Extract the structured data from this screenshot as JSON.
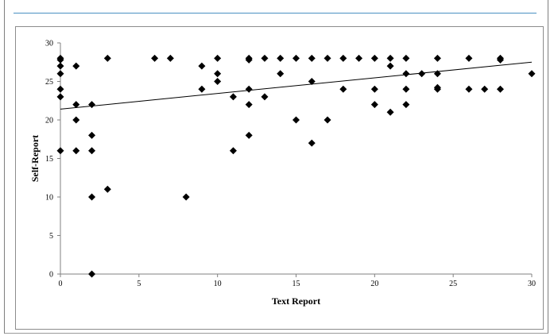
{
  "chart_data": {
    "type": "scatter",
    "title": "",
    "xlabel": "Text Report",
    "ylabel": "Self-Report",
    "xlim": [
      0,
      30
    ],
    "ylim": [
      0,
      30
    ],
    "x_ticks": [
      "0",
      "5",
      "10",
      "15",
      "20",
      "25",
      "30"
    ],
    "y_ticks": [
      "0",
      "5",
      "10",
      "15",
      "20",
      "25",
      "30"
    ],
    "grid": false,
    "legend": "none",
    "marker": "diamond",
    "marker_color": "#000000",
    "trendline": {
      "type": "linear",
      "x": [
        0,
        30
      ],
      "y": [
        21.4,
        27.5
      ]
    },
    "points": [
      {
        "x": 0,
        "y": 28
      },
      {
        "x": 0,
        "y": 27.8
      },
      {
        "x": 0,
        "y": 27
      },
      {
        "x": 0,
        "y": 26
      },
      {
        "x": 0,
        "y": 24
      },
      {
        "x": 0,
        "y": 23
      },
      {
        "x": 0,
        "y": 16
      },
      {
        "x": 1,
        "y": 27
      },
      {
        "x": 1,
        "y": 22
      },
      {
        "x": 1,
        "y": 20
      },
      {
        "x": 1,
        "y": 16
      },
      {
        "x": 2,
        "y": 22
      },
      {
        "x": 2,
        "y": 18
      },
      {
        "x": 2,
        "y": 16
      },
      {
        "x": 2,
        "y": 10
      },
      {
        "x": 2,
        "y": 0
      },
      {
        "x": 3,
        "y": 28
      },
      {
        "x": 3,
        "y": 11
      },
      {
        "x": 6,
        "y": 28
      },
      {
        "x": 7,
        "y": 28
      },
      {
        "x": 8,
        "y": 10
      },
      {
        "x": 9,
        "y": 27
      },
      {
        "x": 9,
        "y": 24
      },
      {
        "x": 10,
        "y": 28
      },
      {
        "x": 10,
        "y": 26
      },
      {
        "x": 10,
        "y": 25
      },
      {
        "x": 11,
        "y": 23
      },
      {
        "x": 11,
        "y": 16
      },
      {
        "x": 12,
        "y": 28
      },
      {
        "x": 12,
        "y": 27.8
      },
      {
        "x": 12,
        "y": 24
      },
      {
        "x": 12,
        "y": 22
      },
      {
        "x": 12,
        "y": 18
      },
      {
        "x": 13,
        "y": 28
      },
      {
        "x": 13,
        "y": 23
      },
      {
        "x": 14,
        "y": 28
      },
      {
        "x": 14,
        "y": 26
      },
      {
        "x": 15,
        "y": 28
      },
      {
        "x": 15,
        "y": 20
      },
      {
        "x": 16,
        "y": 28
      },
      {
        "x": 16,
        "y": 25
      },
      {
        "x": 16,
        "y": 17
      },
      {
        "x": 17,
        "y": 28
      },
      {
        "x": 17,
        "y": 20
      },
      {
        "x": 18,
        "y": 28
      },
      {
        "x": 18,
        "y": 24
      },
      {
        "x": 19,
        "y": 28
      },
      {
        "x": 20,
        "y": 28
      },
      {
        "x": 20,
        "y": 24
      },
      {
        "x": 20,
        "y": 22
      },
      {
        "x": 21,
        "y": 28
      },
      {
        "x": 21,
        "y": 27
      },
      {
        "x": 21,
        "y": 21
      },
      {
        "x": 22,
        "y": 28
      },
      {
        "x": 22,
        "y": 26
      },
      {
        "x": 22,
        "y": 24
      },
      {
        "x": 22,
        "y": 22
      },
      {
        "x": 23,
        "y": 26
      },
      {
        "x": 24,
        "y": 28
      },
      {
        "x": 24,
        "y": 26
      },
      {
        "x": 24,
        "y": 24
      },
      {
        "x": 24,
        "y": 24.2
      },
      {
        "x": 26,
        "y": 28
      },
      {
        "x": 26,
        "y": 24
      },
      {
        "x": 27,
        "y": 24
      },
      {
        "x": 28,
        "y": 28
      },
      {
        "x": 28,
        "y": 27.8
      },
      {
        "x": 28,
        "y": 24
      },
      {
        "x": 30,
        "y": 26
      }
    ]
  }
}
